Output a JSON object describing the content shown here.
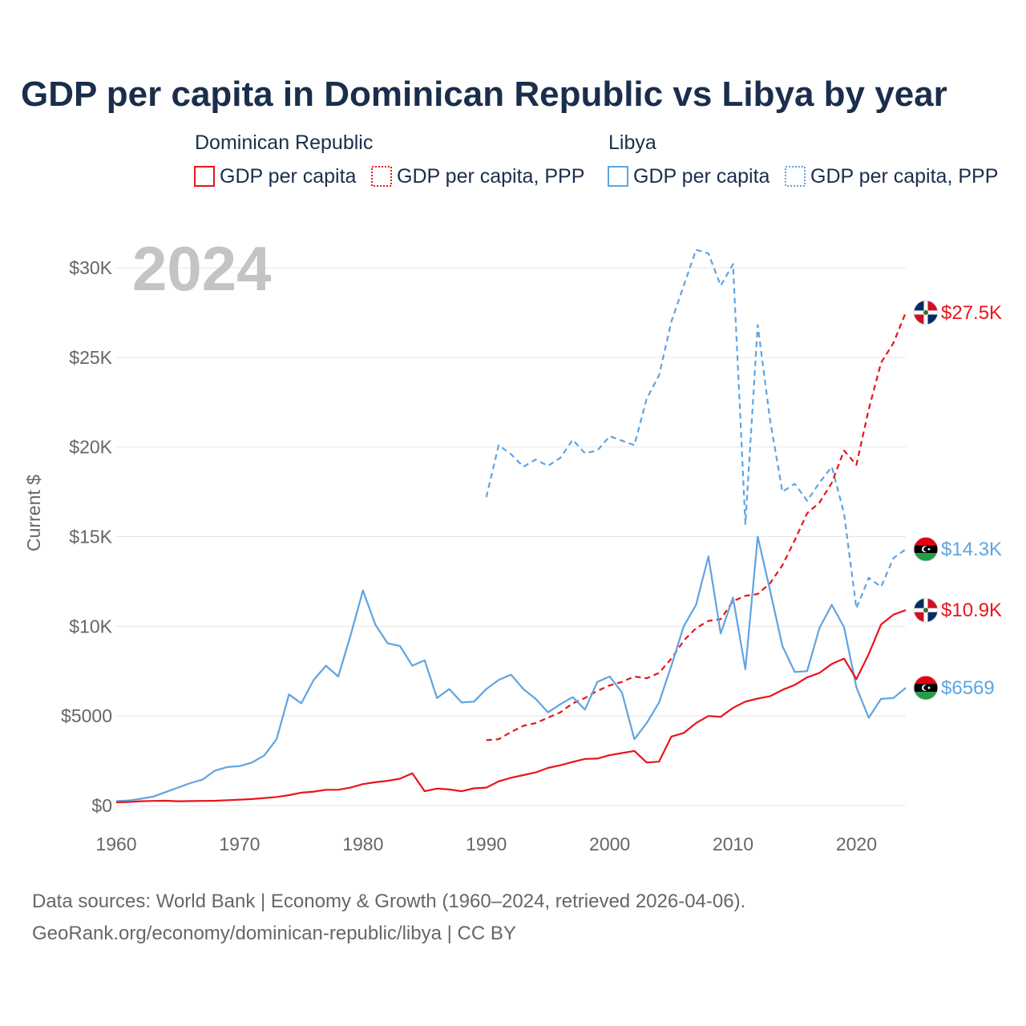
{
  "title": "GDP per capita in Dominican Republic vs Libya by year",
  "year_watermark": "2024",
  "legend": {
    "groups": [
      {
        "name": "Dominican Republic",
        "color": "#e8141b",
        "items": [
          {
            "label": "GDP per capita",
            "style": "solid"
          },
          {
            "label": "GDP per capita, PPP",
            "style": "dotted"
          }
        ]
      },
      {
        "name": "Libya",
        "color": "#5ea4e2",
        "items": [
          {
            "label": "GDP per capita",
            "style": "solid"
          },
          {
            "label": "GDP per capita, PPP",
            "style": "dotted"
          }
        ]
      }
    ]
  },
  "source": {
    "line1": "Data sources: World Bank | Economy & Growth (1960–2024, retrieved 2026-04-06).",
    "line2": "GeoRank.org/economy/dominican-republic/libya | CC BY"
  },
  "chart_data": {
    "type": "line",
    "title": "GDP per capita in Dominican Republic vs Libya by year",
    "xlabel": "",
    "ylabel": "Current $",
    "xlim": [
      1960,
      2024
    ],
    "ylim": [
      0,
      32000
    ],
    "x_ticks": [
      1960,
      1970,
      1980,
      1990,
      2000,
      2010,
      2020
    ],
    "y_ticks": [
      {
        "value": 0,
        "label": "$0"
      },
      {
        "value": 5000,
        "label": "$5000"
      },
      {
        "value": 10000,
        "label": "$10K"
      },
      {
        "value": 15000,
        "label": "$15K"
      },
      {
        "value": 20000,
        "label": "$20K"
      },
      {
        "value": 25000,
        "label": "$25K"
      },
      {
        "value": 30000,
        "label": "$30K"
      }
    ],
    "grid": true,
    "series": [
      {
        "name": "Libya GDP per capita, PPP",
        "country": "Libya",
        "color": "#5ea4e2",
        "dash": "dashed",
        "end_label": "$14.3K",
        "flag": "libya",
        "x": [
          1990,
          1991,
          1992,
          1993,
          1994,
          1995,
          1996,
          1997,
          1998,
          1999,
          2000,
          2001,
          2002,
          2003,
          2004,
          2005,
          2006,
          2007,
          2008,
          2009,
          2010,
          2011,
          2012,
          2013,
          2014,
          2015,
          2016,
          2017,
          2018,
          2019,
          2020,
          2021,
          2022,
          2023,
          2024
        ],
        "values": [
          17200,
          20100,
          19600,
          18900,
          19300,
          18950,
          19400,
          20400,
          19650,
          19800,
          20600,
          20350,
          20100,
          22700,
          24000,
          27000,
          29000,
          31000,
          30800,
          29000,
          30200,
          15700,
          26800,
          21500,
          17500,
          17950,
          17000,
          18000,
          18900,
          16300,
          11000,
          12700,
          12200,
          13800,
          14300
        ]
      },
      {
        "name": "Dominican Republic GDP per capita, PPP",
        "country": "Dominican Republic",
        "color": "#e8141b",
        "dash": "dashed",
        "end_label": "$27.5K",
        "flag": "dominican-republic",
        "x": [
          1990,
          1991,
          1992,
          1993,
          1994,
          1995,
          1996,
          1997,
          1998,
          1999,
          2000,
          2001,
          2002,
          2003,
          2004,
          2005,
          2006,
          2007,
          2008,
          2009,
          2010,
          2011,
          2012,
          2013,
          2014,
          2015,
          2016,
          2017,
          2018,
          2019,
          2020,
          2021,
          2022,
          2023,
          2024
        ],
        "values": [
          3650,
          3700,
          4100,
          4450,
          4600,
          4900,
          5200,
          5700,
          6000,
          6400,
          6700,
          6900,
          7200,
          7100,
          7400,
          8200,
          9200,
          9900,
          10300,
          10400,
          11400,
          11700,
          11800,
          12400,
          13400,
          14800,
          16300,
          16900,
          18000,
          19800,
          19000,
          22100,
          24700,
          25800,
          27500
        ]
      },
      {
        "name": "Libya GDP per capita",
        "country": "Libya",
        "color": "#5ea4e2",
        "dash": "solid",
        "end_label": "$6569",
        "flag": "libya",
        "x": [
          1960,
          1961,
          1962,
          1963,
          1964,
          1965,
          1966,
          1967,
          1968,
          1969,
          1970,
          1971,
          1972,
          1973,
          1974,
          1975,
          1976,
          1977,
          1978,
          1979,
          1980,
          1981,
          1982,
          1983,
          1984,
          1985,
          1986,
          1987,
          1988,
          1989,
          1990,
          1991,
          1992,
          1993,
          1994,
          1995,
          1996,
          1997,
          1998,
          1999,
          2000,
          2001,
          2002,
          2003,
          2004,
          2005,
          2006,
          2007,
          2008,
          2009,
          2010,
          2011,
          2012,
          2013,
          2014,
          2015,
          2016,
          2017,
          2018,
          2019,
          2020,
          2021,
          2022,
          2023,
          2024
        ],
        "values": [
          250,
          280,
          380,
          500,
          750,
          1000,
          1250,
          1450,
          1950,
          2150,
          2200,
          2400,
          2800,
          3700,
          6200,
          5700,
          7000,
          7800,
          7200,
          9500,
          12000,
          10100,
          9050,
          8900,
          7800,
          8100,
          6000,
          6500,
          5750,
          5800,
          6500,
          7000,
          7300,
          6500,
          5950,
          5200,
          5650,
          6050,
          5350,
          6900,
          7200,
          6300,
          3700,
          4600,
          5750,
          7800,
          10000,
          11200,
          13900,
          9600,
          11600,
          7600,
          15000,
          12000,
          8900,
          7450,
          7500,
          9900,
          11200,
          9950,
          6600,
          4900,
          5950,
          6000,
          6569
        ]
      },
      {
        "name": "Dominican Republic GDP per capita",
        "country": "Dominican Republic",
        "color": "#e8141b",
        "dash": "solid",
        "end_label": "$10.9K",
        "flag": "dominican-republic",
        "x": [
          1960,
          1961,
          1962,
          1963,
          1964,
          1965,
          1966,
          1967,
          1968,
          1969,
          1970,
          1971,
          1972,
          1973,
          1974,
          1975,
          1976,
          1977,
          1978,
          1979,
          1980,
          1981,
          1982,
          1983,
          1984,
          1985,
          1986,
          1987,
          1988,
          1989,
          1990,
          1991,
          1992,
          1993,
          1994,
          1995,
          1996,
          1997,
          1998,
          1999,
          2000,
          2001,
          2002,
          2003,
          2004,
          2005,
          2006,
          2007,
          2008,
          2009,
          2010,
          2011,
          2012,
          2013,
          2014,
          2015,
          2016,
          2017,
          2018,
          2019,
          2020,
          2021,
          2022,
          2023,
          2024
        ],
        "values": [
          180,
          200,
          240,
          260,
          270,
          240,
          250,
          260,
          270,
          300,
          330,
          360,
          420,
          480,
          580,
          720,
          780,
          880,
          880,
          1000,
          1200,
          1300,
          1380,
          1500,
          1800,
          800,
          950,
          900,
          800,
          960,
          1000,
          1350,
          1550,
          1700,
          1850,
          2100,
          2250,
          2430,
          2600,
          2620,
          2810,
          2930,
          3050,
          2400,
          2450,
          3850,
          4050,
          4600,
          5000,
          4950,
          5450,
          5800,
          5970,
          6100,
          6450,
          6730,
          7150,
          7400,
          7900,
          8200,
          7050,
          8450,
          10100,
          10650,
          10900
        ]
      }
    ]
  }
}
